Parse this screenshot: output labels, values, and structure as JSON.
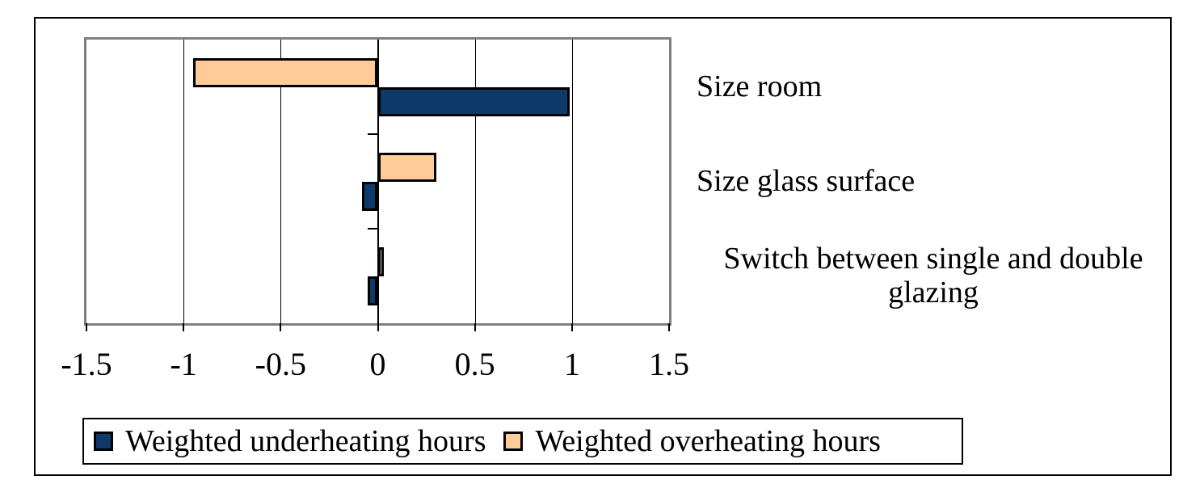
{
  "chart_data": {
    "type": "bar",
    "orientation": "horizontal",
    "title": "",
    "categories": [
      "Size room",
      "Size glass surface",
      "Switch between single and double glazing"
    ],
    "series": [
      {
        "id": "underheating",
        "name": "Weighted underheating hours",
        "color": "#0d3a68",
        "values": [
          0.99,
          -0.08,
          -0.05
        ]
      },
      {
        "id": "overheating",
        "name": "Weighted overheating hours",
        "color": "#ffcc99",
        "values": [
          -0.95,
          0.3,
          0.03
        ]
      }
    ],
    "xlim": [
      -1.5,
      1.5
    ],
    "x_ticks": [
      "-1.5",
      "-1",
      "-0.5",
      "0",
      "0.5",
      "1",
      "1.5"
    ],
    "grid": true,
    "legend_position": "bottom",
    "colors": {
      "plot_border": "#808080",
      "outer_border": "#000000",
      "gridline": "#000000",
      "bar_border": "#000000",
      "background": "#ffffff"
    }
  }
}
